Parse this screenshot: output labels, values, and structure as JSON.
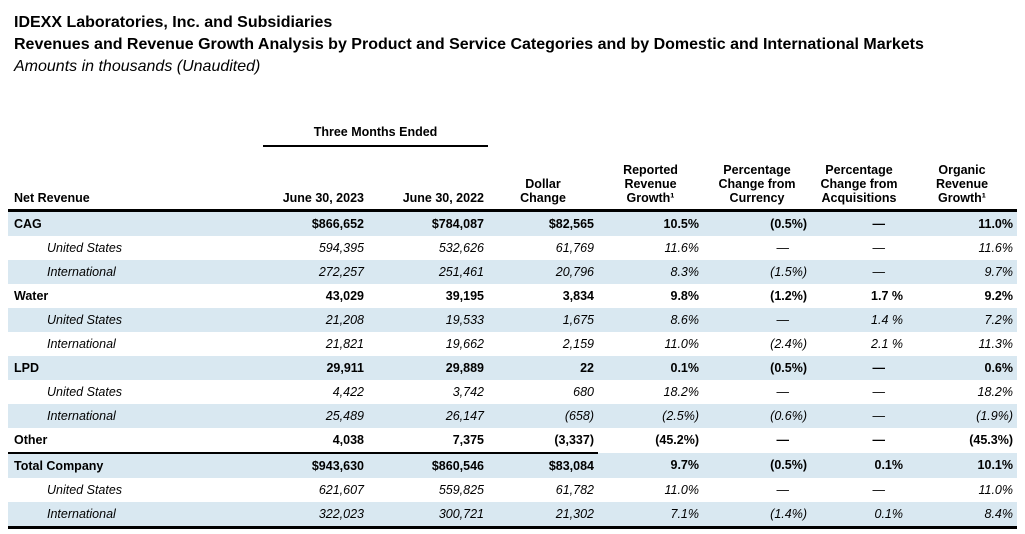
{
  "document": {
    "title": "IDEXX Laboratories, Inc. and Subsidiaries",
    "subtitle": "Revenues and Revenue Growth Analysis by Product and Service Categories and by Domestic and International Markets",
    "note": "Amounts in thousands (Unaudited)"
  },
  "table": {
    "period_header": "Three Months Ended",
    "row_header_label": "Net Revenue",
    "columns": [
      "June 30, 2023",
      "June 30, 2022",
      "Dollar Change",
      "Reported Revenue Growth¹",
      "Percentage Change from Currency",
      "Percentage Change from Acquisitions",
      "Organic Revenue Growth¹"
    ],
    "rows": [
      {
        "label": "CAG",
        "type": "category",
        "shaded": true,
        "values": [
          "$866,652",
          "$784,087",
          "$82,565",
          "10.5%",
          "(0.5%)",
          "—",
          "11.0%"
        ]
      },
      {
        "label": "United States",
        "type": "sub",
        "shaded": false,
        "values": [
          "594,395",
          "532,626",
          "61,769",
          "11.6%",
          "—",
          "—",
          "11.6%"
        ]
      },
      {
        "label": "International",
        "type": "sub",
        "shaded": true,
        "values": [
          "272,257",
          "251,461",
          "20,796",
          "8.3%",
          "(1.5%)",
          "—",
          "9.7%"
        ]
      },
      {
        "label": "Water",
        "type": "category",
        "shaded": false,
        "values": [
          "43,029",
          "39,195",
          "3,834",
          "9.8%",
          "(1.2%)",
          "1.7 %",
          "9.2%"
        ],
        "overrides": {
          "5": "regular"
        }
      },
      {
        "label": "United States",
        "type": "sub",
        "shaded": true,
        "values": [
          "21,208",
          "19,533",
          "1,675",
          "8.6%",
          "—",
          "1.4 %",
          "7.2%"
        ],
        "overrides": {
          "5": "upright"
        }
      },
      {
        "label": "International",
        "type": "sub",
        "shaded": false,
        "values": [
          "21,821",
          "19,662",
          "2,159",
          "11.0%",
          "(2.4%)",
          "2.1 %",
          "11.3%"
        ],
        "overrides": {
          "5": "upright"
        }
      },
      {
        "label": "LPD",
        "type": "category",
        "shaded": true,
        "values": [
          "29,911",
          "29,889",
          "22",
          "0.1%",
          "(0.5%)",
          "—",
          "0.6%"
        ]
      },
      {
        "label": "United States",
        "type": "sub",
        "shaded": false,
        "values": [
          "4,422",
          "3,742",
          "680",
          "18.2%",
          "—",
          "—",
          "18.2%"
        ]
      },
      {
        "label": "International",
        "type": "sub",
        "shaded": true,
        "values": [
          "25,489",
          "26,147",
          "(658)",
          "(2.5%)",
          "(0.6%)",
          "—",
          "(1.9%)"
        ]
      },
      {
        "label": "Other",
        "type": "category",
        "shaded": false,
        "values": [
          "4,038",
          "7,375",
          "(3,337)",
          "(45.2%)",
          "—",
          "—",
          "(45.3%)"
        ],
        "rule_below_cols": 4
      },
      {
        "label": "Total Company",
        "type": "category",
        "shaded": true,
        "values": [
          "$943,630",
          "$860,546",
          "$83,084",
          "9.7%",
          "(0.5%)",
          "0.1%",
          "10.1%"
        ]
      },
      {
        "label": "United States",
        "type": "sub",
        "shaded": false,
        "values": [
          "621,607",
          "559,825",
          "61,782",
          "11.0%",
          "—",
          "—",
          "11.0%"
        ]
      },
      {
        "label": "International",
        "type": "sub",
        "shaded": true,
        "values": [
          "322,023",
          "300,721",
          "21,302",
          "7.1%",
          "(1.4%)",
          "0.1%",
          "8.4%"
        ]
      }
    ]
  },
  "colors": {
    "band": "#D9E8F1",
    "rule": "#000000",
    "text": "#000000"
  }
}
